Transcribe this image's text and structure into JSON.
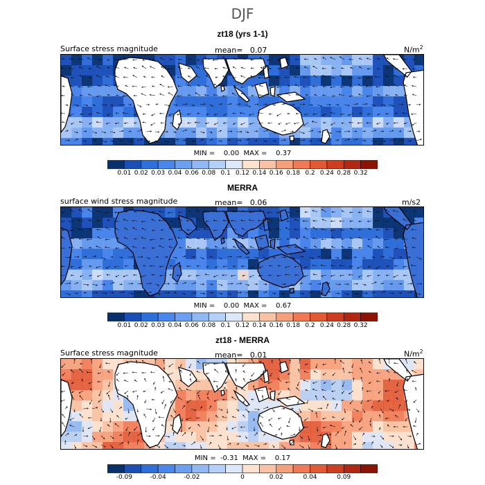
{
  "figure": {
    "season_title": "DJF"
  },
  "colorbars": {
    "main": {
      "colors": [
        "#08306b",
        "#1c4fb6",
        "#2f6fd9",
        "#4a87ec",
        "#6a9ff1",
        "#8fb8f4",
        "#b5d0f7",
        "#dde8fb",
        "#fde2d0",
        "#fac2a4",
        "#f6a07b",
        "#ef7a55",
        "#e15a36",
        "#cd3e21",
        "#b02712",
        "#8c1204"
      ],
      "labels": [
        "0.01",
        "0.02",
        "0.03",
        "0.04",
        "0.06",
        "0.08",
        "0.1",
        "0.12",
        "0.14",
        "0.16",
        "0.18",
        "0.2",
        "0.24",
        "0.28",
        "0.32"
      ]
    },
    "diff": {
      "colors": [
        "#08306b",
        "#1c4fb6",
        "#2f6fd9",
        "#4a87ec",
        "#6a9ff1",
        "#8fb8f4",
        "#b5d0f7",
        "#dde8fb",
        "#fde2d0",
        "#fac2a4",
        "#f6a07b",
        "#ef7a55",
        "#e15a36",
        "#cd3e21",
        "#b02712",
        "#8c1204"
      ],
      "labels": [
        {
          "text": "-0.09",
          "after_box": 1
        },
        {
          "text": "-0.04",
          "after_box": 3
        },
        {
          "text": "-0.02",
          "after_box": 5
        },
        {
          "text": "0",
          "after_box": 8
        },
        {
          "text": "0.02",
          "after_box": 10
        },
        {
          "text": "0.04",
          "after_box": 12
        },
        {
          "text": "0.09",
          "after_box": 14
        }
      ]
    }
  },
  "panels": [
    {
      "title": "zt18 (yrs 1-1)",
      "variable": "Surface stress magnitude",
      "mean_label": "mean=",
      "mean_value": "0.07",
      "units": "N/m",
      "units_sup": "2",
      "min_label": "MIN =",
      "min_value": "0.00",
      "max_label": "MAX =",
      "max_value": "0.37",
      "field_kind": "model",
      "colorbar": "main"
    },
    {
      "title": "MERRA",
      "variable": "surface wind stress magnitude",
      "mean_label": "mean=",
      "mean_value": "0.06",
      "units": "m/s2",
      "units_sup": "",
      "min_label": "MIN =",
      "min_value": "0.00",
      "max_label": "MAX =",
      "max_value": "0.67",
      "field_kind": "obs",
      "colorbar": "main"
    },
    {
      "title": "zt18 - MERRA",
      "variable": "Surface stress magnitude",
      "mean_label": "mean=",
      "mean_value": "0.01",
      "units": "N/m",
      "units_sup": "2",
      "min_label": "MIN =",
      "min_value": "-0.31",
      "max_label": "MAX =",
      "max_value": "0.17",
      "field_kind": "diff",
      "colorbar": "diff"
    }
  ]
}
